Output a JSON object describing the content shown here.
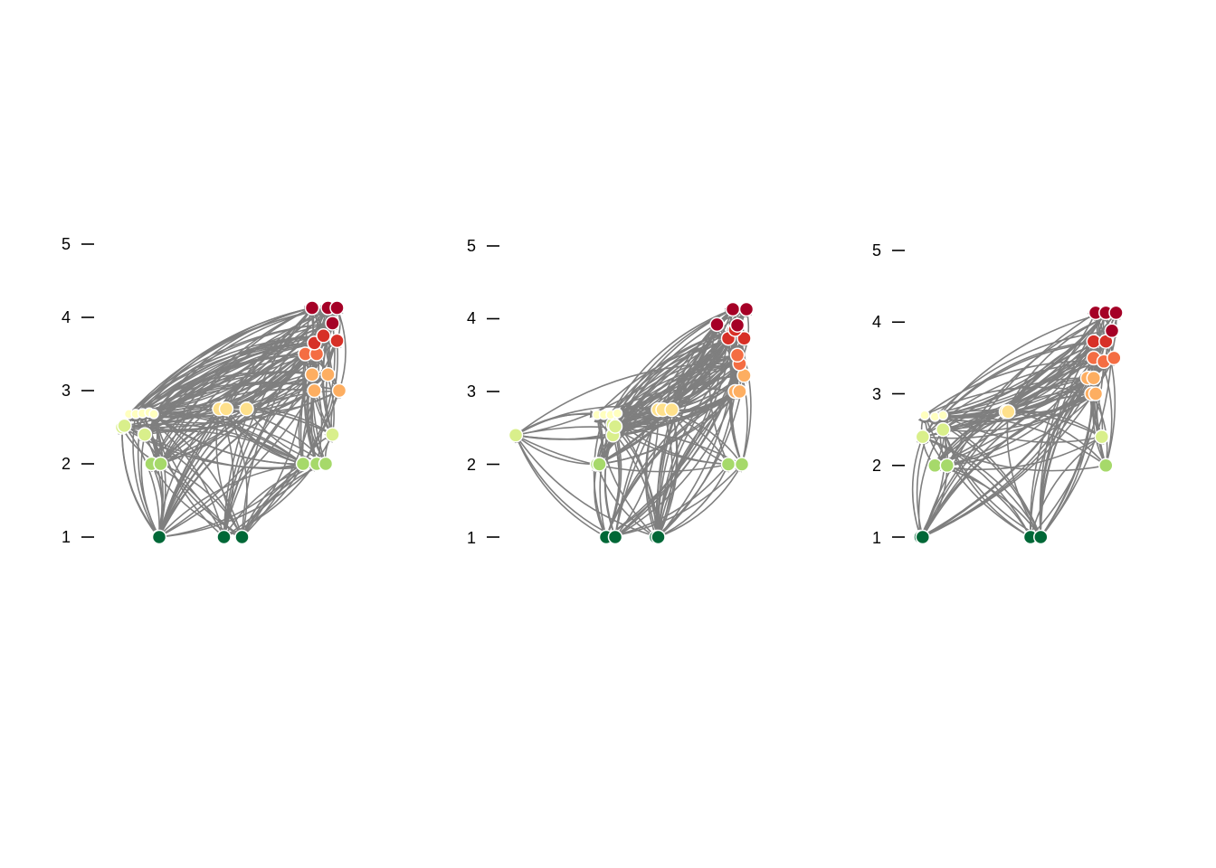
{
  "colors": {
    "edge": "#7f7f7f",
    "node_outline": "#ffffff",
    "axis": "#000000",
    "level_palette": {
      "1": "#006837",
      "2": "#a6d96a",
      "2.4": "#d9ef8b",
      "2.7": "#ffffbf",
      "2.75": "#fee08b",
      "3": "#fdae61",
      "3.2": "#fdae61",
      "3.5": "#f46d43",
      "3.7": "#d73027",
      "4": "#a50026",
      "4.2": "#a50026"
    }
  },
  "chart_data": [
    {
      "type": "scatter",
      "title": "",
      "xlabel": "",
      "ylabel": "",
      "ylim": [
        1,
        5
      ],
      "y_ticks": [
        "1",
        "2",
        "3",
        "4",
        "5"
      ],
      "grid": false,
      "legend": "none",
      "nodes": [
        {
          "x": 1.6,
          "y": 1.0
        },
        {
          "x": 1.62,
          "y": 1.0
        },
        {
          "x": 3.05,
          "y": 1.0
        },
        {
          "x": 3.45,
          "y": 1.0
        },
        {
          "x": 1.45,
          "y": 2.0
        },
        {
          "x": 1.65,
          "y": 2.0
        },
        {
          "x": 4.8,
          "y": 2.0
        },
        {
          "x": 5.1,
          "y": 2.0
        },
        {
          "x": 5.3,
          "y": 2.0
        },
        {
          "x": 1.3,
          "y": 2.4
        },
        {
          "x": 5.45,
          "y": 2.4
        },
        {
          "x": 0.8,
          "y": 2.5
        },
        {
          "x": 0.85,
          "y": 2.52
        },
        {
          "x": 0.95,
          "y": 2.68
        },
        {
          "x": 1.1,
          "y": 2.68
        },
        {
          "x": 1.25,
          "y": 2.69
        },
        {
          "x": 1.4,
          "y": 2.7
        },
        {
          "x": 1.5,
          "y": 2.68
        },
        {
          "x": 2.95,
          "y": 2.75
        },
        {
          "x": 3.1,
          "y": 2.75
        },
        {
          "x": 3.55,
          "y": 2.75
        },
        {
          "x": 5.05,
          "y": 3.0
        },
        {
          "x": 5.6,
          "y": 3.0
        },
        {
          "x": 5.0,
          "y": 3.22
        },
        {
          "x": 5.35,
          "y": 3.22
        },
        {
          "x": 4.85,
          "y": 3.5
        },
        {
          "x": 5.1,
          "y": 3.5
        },
        {
          "x": 5.05,
          "y": 3.65
        },
        {
          "x": 5.25,
          "y": 3.75
        },
        {
          "x": 5.55,
          "y": 3.68
        },
        {
          "x": 5.45,
          "y": 3.92
        },
        {
          "x": 5.0,
          "y": 4.13
        },
        {
          "x": 5.35,
          "y": 4.13
        },
        {
          "x": 5.55,
          "y": 4.13
        }
      ]
    },
    {
      "type": "scatter",
      "title": "",
      "xlabel": "",
      "ylabel": "",
      "ylim": [
        1,
        5
      ],
      "y_ticks": [
        "1",
        "2",
        "3",
        "4",
        "5"
      ],
      "grid": false,
      "legend": "none",
      "nodes": [
        {
          "x": 2.5,
          "y": 1.0
        },
        {
          "x": 2.7,
          "y": 1.0
        },
        {
          "x": 3.6,
          "y": 1.0
        },
        {
          "x": 3.65,
          "y": 1.0
        },
        {
          "x": 2.3,
          "y": 2.0
        },
        {
          "x": 2.35,
          "y": 2.0
        },
        {
          "x": 5.2,
          "y": 2.0
        },
        {
          "x": 5.5,
          "y": 2.0
        },
        {
          "x": 0.5,
          "y": 2.4
        },
        {
          "x": 2.65,
          "y": 2.4
        },
        {
          "x": 2.65,
          "y": 2.55
        },
        {
          "x": 2.7,
          "y": 2.52
        },
        {
          "x": 2.3,
          "y": 2.68
        },
        {
          "x": 2.45,
          "y": 2.68
        },
        {
          "x": 2.6,
          "y": 2.68
        },
        {
          "x": 2.75,
          "y": 2.7
        },
        {
          "x": 3.65,
          "y": 2.75
        },
        {
          "x": 3.75,
          "y": 2.75
        },
        {
          "x": 3.95,
          "y": 2.75
        },
        {
          "x": 5.35,
          "y": 3.0
        },
        {
          "x": 5.45,
          "y": 3.0
        },
        {
          "x": 5.55,
          "y": 3.22
        },
        {
          "x": 5.45,
          "y": 3.38
        },
        {
          "x": 5.4,
          "y": 3.5
        },
        {
          "x": 5.2,
          "y": 3.73
        },
        {
          "x": 5.55,
          "y": 3.73
        },
        {
          "x": 5.35,
          "y": 3.85
        },
        {
          "x": 4.95,
          "y": 3.92
        },
        {
          "x": 5.4,
          "y": 3.91
        },
        {
          "x": 5.3,
          "y": 4.13
        },
        {
          "x": 5.6,
          "y": 4.13
        }
      ]
    },
    {
      "type": "scatter",
      "title": "",
      "xlabel": "",
      "ylabel": "",
      "ylim": [
        1,
        5
      ],
      "y_ticks": [
        "1",
        "2",
        "3",
        "4",
        "5"
      ],
      "grid": false,
      "legend": "none",
      "nodes": [
        {
          "x": 0.5,
          "y": 1.0
        },
        {
          "x": 0.55,
          "y": 1.0
        },
        {
          "x": 3.2,
          "y": 1.0
        },
        {
          "x": 3.45,
          "y": 1.0
        },
        {
          "x": 0.85,
          "y": 2.0
        },
        {
          "x": 1.15,
          "y": 2.0
        },
        {
          "x": 5.05,
          "y": 2.0
        },
        {
          "x": 0.55,
          "y": 2.4
        },
        {
          "x": 4.95,
          "y": 2.4
        },
        {
          "x": 1.05,
          "y": 2.5
        },
        {
          "x": 0.6,
          "y": 2.7
        },
        {
          "x": 0.85,
          "y": 2.68
        },
        {
          "x": 1.05,
          "y": 2.7
        },
        {
          "x": 2.6,
          "y": 2.75
        },
        {
          "x": 2.65,
          "y": 2.75
        },
        {
          "x": 4.7,
          "y": 3.0
        },
        {
          "x": 4.8,
          "y": 3.0
        },
        {
          "x": 4.6,
          "y": 3.22
        },
        {
          "x": 4.75,
          "y": 3.22
        },
        {
          "x": 4.75,
          "y": 3.5
        },
        {
          "x": 5.0,
          "y": 3.45
        },
        {
          "x": 5.25,
          "y": 3.5
        },
        {
          "x": 4.75,
          "y": 3.73
        },
        {
          "x": 5.05,
          "y": 3.73
        },
        {
          "x": 5.2,
          "y": 3.88
        },
        {
          "x": 4.8,
          "y": 4.13
        },
        {
          "x": 5.05,
          "y": 4.13
        },
        {
          "x": 5.3,
          "y": 4.13
        }
      ]
    }
  ]
}
